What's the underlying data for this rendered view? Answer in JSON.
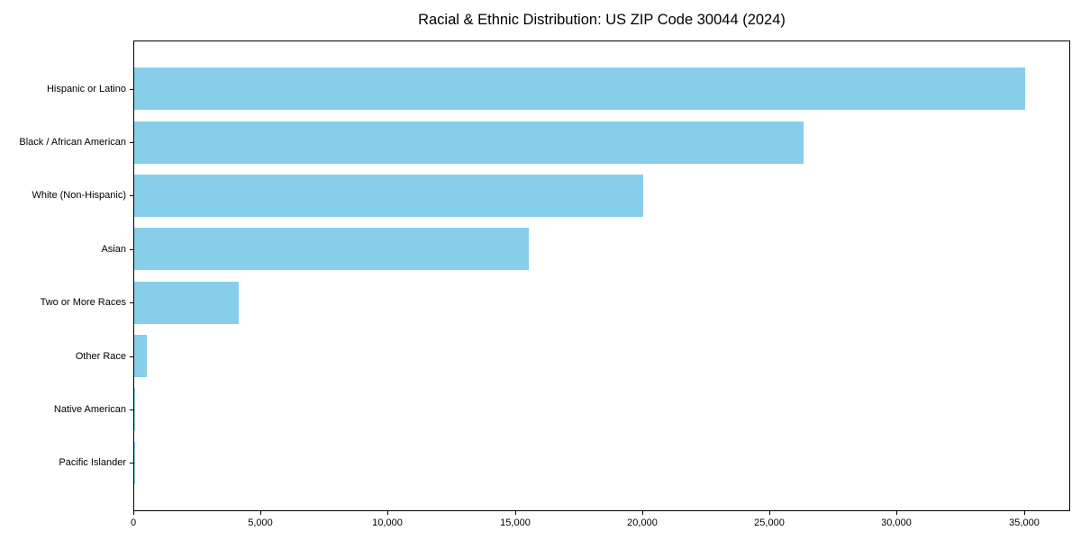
{
  "chart_data": {
    "type": "bar",
    "orientation": "horizontal",
    "title": "Racial & Ethnic Distribution: US ZIP Code 30044 (2024)",
    "categories": [
      "Hispanic or Latino",
      "Black / African American",
      "White (Non-Hispanic)",
      "Asian",
      "Two or More Races",
      "Other Race",
      "Native American",
      "Pacific Islander"
    ],
    "values": [
      35000,
      26300,
      20000,
      15500,
      4100,
      480,
      40,
      10
    ],
    "xlabel": "",
    "ylabel": "",
    "xlim": [
      0,
      36750
    ],
    "xticks": [
      0,
      5000,
      10000,
      15000,
      20000,
      25000,
      30000,
      35000
    ],
    "xtick_labels": [
      "0",
      "5,000",
      "10,000",
      "15,000",
      "20,000",
      "25,000",
      "30,000",
      "35,000"
    ],
    "bar_color": "#87CEEB",
    "grid": false,
    "legend": null
  }
}
